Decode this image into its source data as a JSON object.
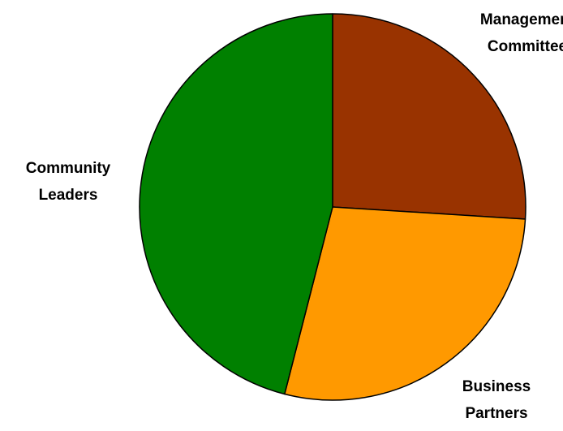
{
  "chart_data": {
    "type": "pie",
    "title": "",
    "start_angle_deg": 0,
    "direction": "clockwise",
    "slices": [
      {
        "label": "Management Committee",
        "label_lines": [
          "Management",
          "Committee"
        ],
        "value": 26,
        "color": "#993300"
      },
      {
        "label": "Business Partners",
        "label_lines": [
          "Business",
          "Partners"
        ],
        "value": 28,
        "color": "#FF9900"
      },
      {
        "label": "Community Leaders",
        "label_lines": [
          "Community",
          "Leaders"
        ],
        "value": 46,
        "color": "#008000"
      }
    ],
    "outline_color": "#000000",
    "legend": "none"
  }
}
